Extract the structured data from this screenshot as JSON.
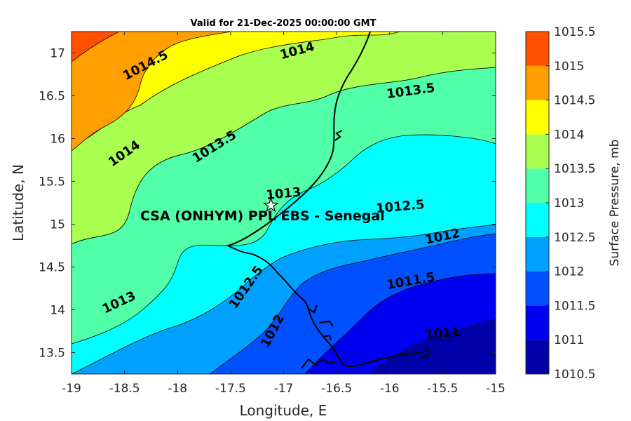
{
  "chart_data": {
    "type": "contour-map",
    "title": "Valid for 21-Dec-2025 00:00:00 GMT",
    "xlabel": "Longitude, E",
    "ylabel": "Latitude, N",
    "xlim": [
      -19,
      -15
    ],
    "ylim": [
      13.25,
      17.25
    ],
    "xticks": [
      "-19",
      "-18.5",
      "-18",
      "-17.5",
      "-17",
      "-16.5",
      "-16",
      "-15.5",
      "-15"
    ],
    "yticks": [
      "13.5",
      "14",
      "14.5",
      "15",
      "15.5",
      "16",
      "16.5",
      "17"
    ],
    "colorbar": {
      "label": "Surface Pressure, mb",
      "levels": [
        "1010.5",
        "1011",
        "1011.5",
        "1012",
        "1012.5",
        "1013",
        "1013.5",
        "1014",
        "1014.5",
        "1015",
        "1015.5"
      ],
      "colors": [
        "#0000a8",
        "#0000f0",
        "#0050ff",
        "#00a0ff",
        "#00ffff",
        "#50ffa8",
        "#a8ff50",
        "#ffff00",
        "#ffa000",
        "#ff5000",
        "#ff0000"
      ]
    },
    "contour_labels": [
      {
        "text": "1014.5",
        "lon": -18.3,
        "lat": 16.85,
        "angle": -28
      },
      {
        "text": "1014",
        "lon": -16.87,
        "lat": 17.02,
        "angle": -15
      },
      {
        "text": "1014",
        "lon": -18.5,
        "lat": 15.82,
        "angle": -35
      },
      {
        "text": "1013.5",
        "lon": -17.65,
        "lat": 15.9,
        "angle": -32
      },
      {
        "text": "1013.5",
        "lon": -15.8,
        "lat": 16.55,
        "angle": -8
      },
      {
        "text": "1013",
        "lon": -17.0,
        "lat": 15.35,
        "angle": -5
      },
      {
        "text": "1013",
        "lon": -18.55,
        "lat": 14.08,
        "angle": -25
      },
      {
        "text": "1012.5",
        "lon": -15.9,
        "lat": 15.2,
        "angle": -5
      },
      {
        "text": "1012.5",
        "lon": -17.35,
        "lat": 14.26,
        "angle": -55
      },
      {
        "text": "1012",
        "lon": -15.5,
        "lat": 14.85,
        "angle": -12
      },
      {
        "text": "1012",
        "lon": -17.1,
        "lat": 13.75,
        "angle": -62
      },
      {
        "text": "1011.5",
        "lon": -15.8,
        "lat": 14.33,
        "angle": -10
      },
      {
        "text": "1011",
        "lon": -15.5,
        "lat": 13.72,
        "angle": -5
      }
    ],
    "marker": {
      "type": "star",
      "lon": -17.12,
      "lat": 15.22
    },
    "site_label": "CSA (ONHYM) PPL EBS  - Senegal"
  }
}
